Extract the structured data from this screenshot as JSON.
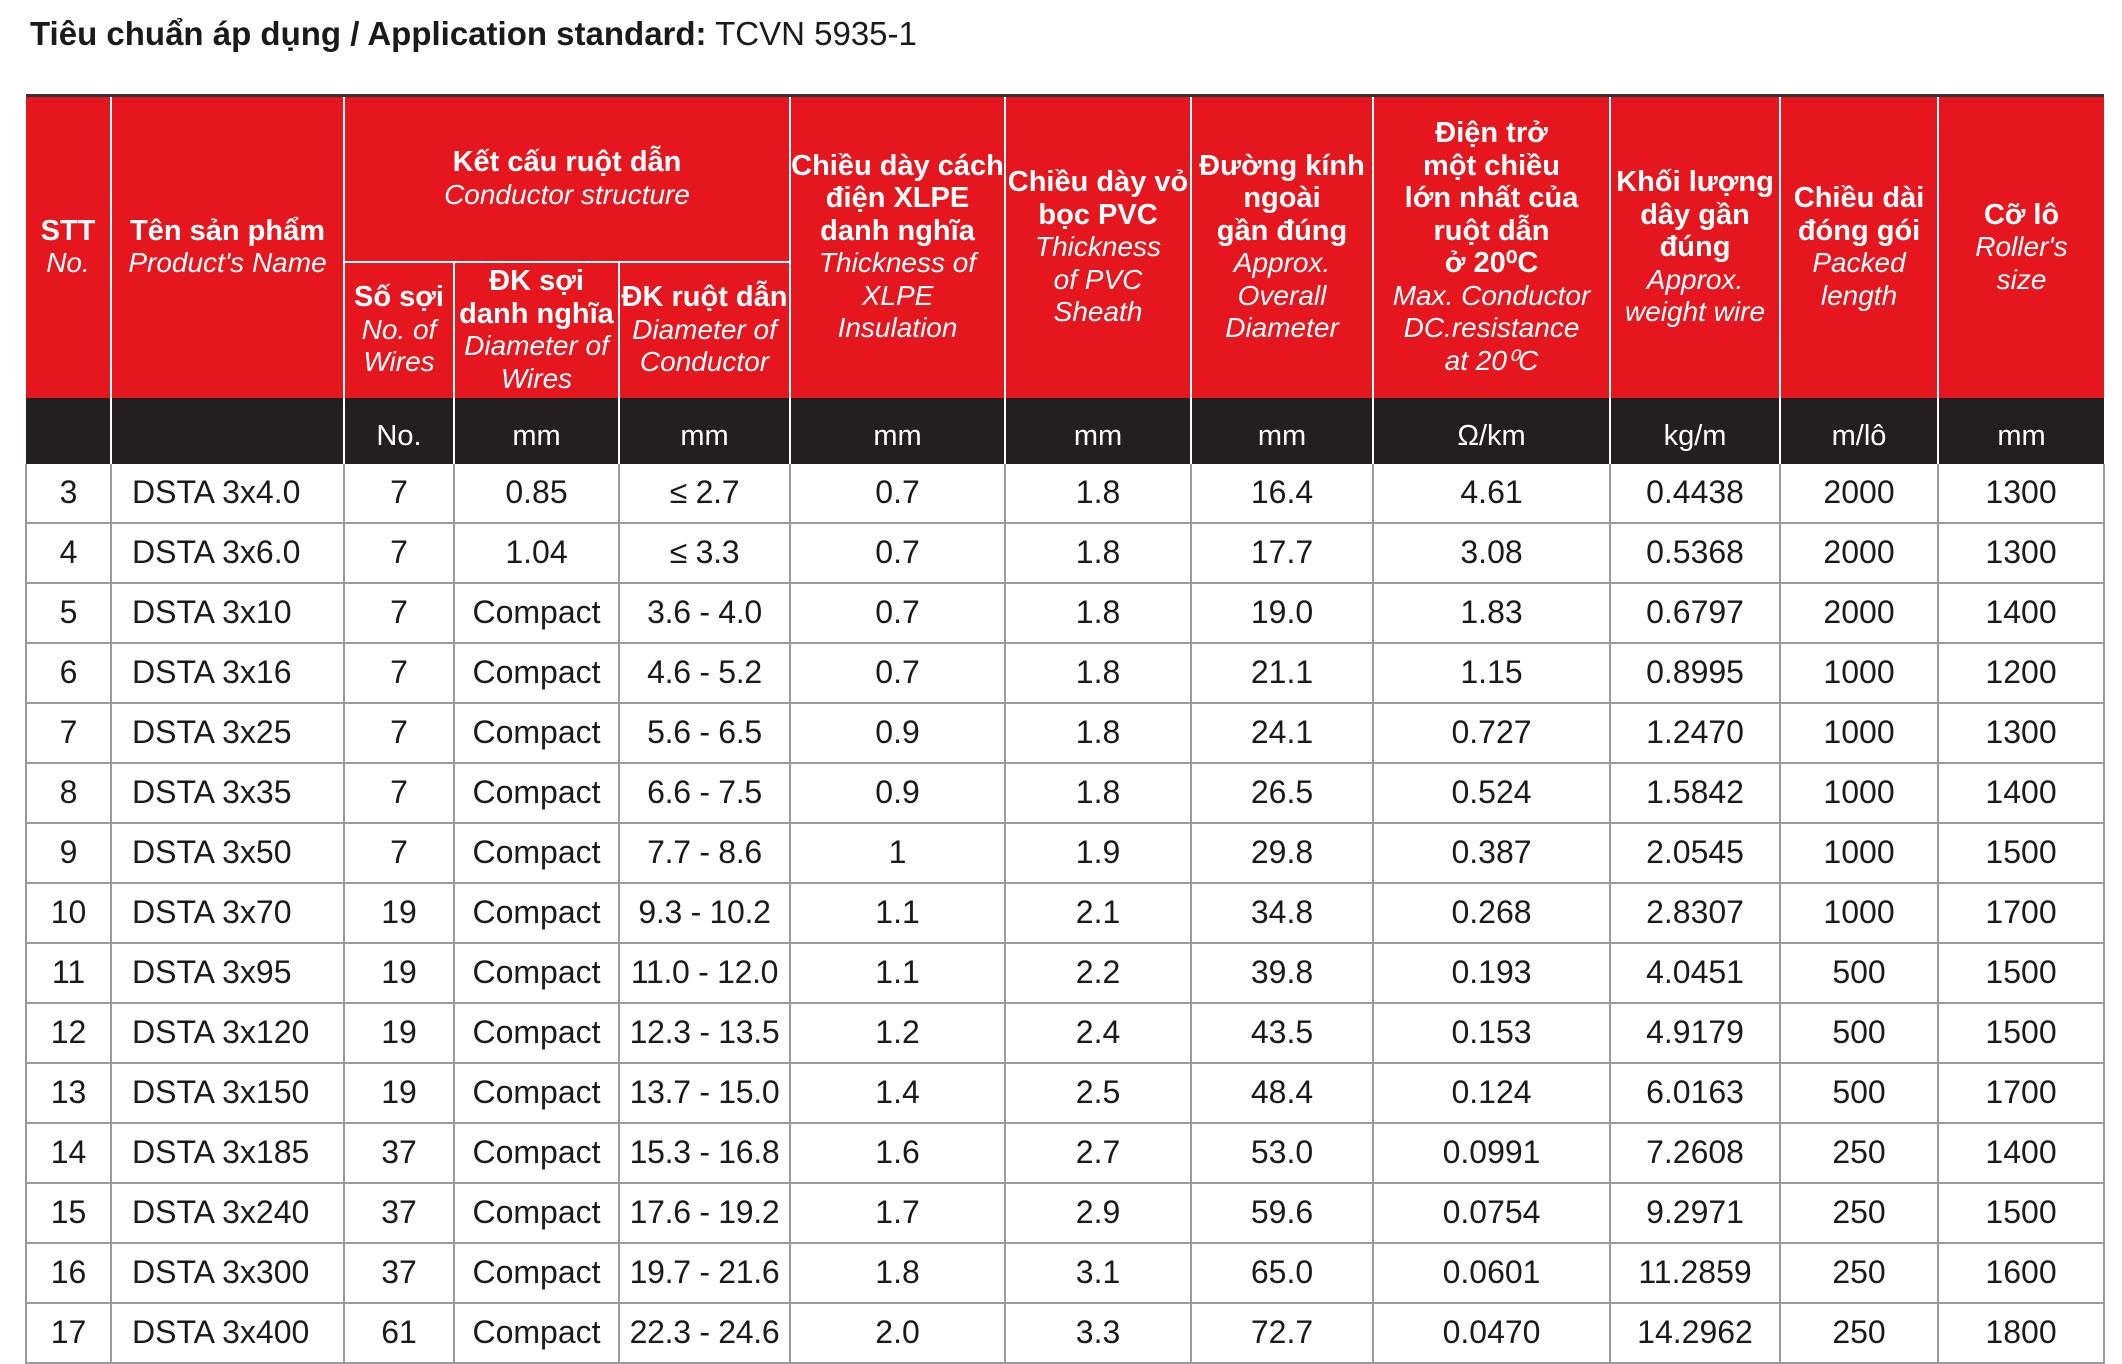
{
  "title": {
    "label": "Tiêu chuẩn áp dụng / Application standard:",
    "value": "TCVN 5935-1"
  },
  "headers": {
    "stt": {
      "vi": "STT",
      "en": "No."
    },
    "name": {
      "vi": "Tên sản phẩm",
      "en": "Product's Name"
    },
    "conductor": {
      "vi": "Kết cấu ruột dẫn",
      "en": "Conductor structure"
    },
    "wires": {
      "vi": "Số sợi",
      "en1": "No. of",
      "en2": "Wires"
    },
    "wire_dia": {
      "vi1": "ĐK sợi",
      "vi2": "danh nghĩa",
      "en1": "Diameter of",
      "en2": "Wires"
    },
    "cond_dia": {
      "vi": "ĐK ruột dẫn",
      "en1": "Diameter of",
      "en2": "Conductor"
    },
    "insulation": {
      "vi1": "Chiều dày cách",
      "vi2": "điện XLPE",
      "vi3": "danh nghĩa",
      "en1": "Thickness of",
      "en2": "XLPE",
      "en3": "Insulation"
    },
    "sheath": {
      "vi1": "Chiều dày vỏ",
      "vi2": "bọc PVC",
      "en1": "Thickness",
      "en2": "of PVC",
      "en3": "Sheath"
    },
    "overall": {
      "vi1": "Đường kính",
      "vi2": "ngoài",
      "vi3": "gần đúng",
      "en1": "Approx.",
      "en2": "Overall",
      "en3": "Diameter"
    },
    "resistance": {
      "vi1": "Điện trở",
      "vi2": "một chiều",
      "vi3": "lớn nhất của",
      "vi4": "ruột dẫn",
      "vi5": "ở 20⁰C",
      "en1": "Max. Conductor",
      "en2": "DC.resistance",
      "en3": "at 20⁰C"
    },
    "weight": {
      "vi1": "Khối lượng",
      "vi2": "dây gần",
      "vi3": "đúng",
      "en1": "Approx.",
      "en2": "weight wire"
    },
    "length": {
      "vi1": "Chiều dài",
      "vi2": "đóng gói",
      "en1": "Packed",
      "en2": "length"
    },
    "roller": {
      "vi": "Cỡ lô",
      "en1": "Roller's",
      "en2": "size"
    }
  },
  "units": [
    "",
    "",
    "No.",
    "mm",
    "mm",
    "mm",
    "mm",
    "mm",
    "Ω/km",
    "kg/m",
    "m/lô",
    "mm"
  ],
  "rows": [
    [
      "3",
      "DSTA 3x4.0",
      "7",
      "0.85",
      "≤ 2.7",
      "0.7",
      "1.8",
      "16.4",
      "4.61",
      "0.4438",
      "2000",
      "1300"
    ],
    [
      "4",
      "DSTA 3x6.0",
      "7",
      "1.04",
      "≤ 3.3",
      "0.7",
      "1.8",
      "17.7",
      "3.08",
      "0.5368",
      "2000",
      "1300"
    ],
    [
      "5",
      "DSTA 3x10",
      "7",
      "Compact",
      "3.6 - 4.0",
      "0.7",
      "1.8",
      "19.0",
      "1.83",
      "0.6797",
      "2000",
      "1400"
    ],
    [
      "6",
      "DSTA 3x16",
      "7",
      "Compact",
      "4.6 - 5.2",
      "0.7",
      "1.8",
      "21.1",
      "1.15",
      "0.8995",
      "1000",
      "1200"
    ],
    [
      "7",
      "DSTA 3x25",
      "7",
      "Compact",
      "5.6 - 6.5",
      "0.9",
      "1.8",
      "24.1",
      "0.727",
      "1.2470",
      "1000",
      "1300"
    ],
    [
      "8",
      "DSTA 3x35",
      "7",
      "Compact",
      "6.6 - 7.5",
      "0.9",
      "1.8",
      "26.5",
      "0.524",
      "1.5842",
      "1000",
      "1400"
    ],
    [
      "9",
      "DSTA 3x50",
      "7",
      "Compact",
      "7.7 - 8.6",
      "1",
      "1.9",
      "29.8",
      "0.387",
      "2.0545",
      "1000",
      "1500"
    ],
    [
      "10",
      "DSTA 3x70",
      "19",
      "Compact",
      "9.3 - 10.2",
      "1.1",
      "2.1",
      "34.8",
      "0.268",
      "2.8307",
      "1000",
      "1700"
    ],
    [
      "11",
      "DSTA 3x95",
      "19",
      "Compact",
      "11.0 - 12.0",
      "1.1",
      "2.2",
      "39.8",
      "0.193",
      "4.0451",
      "500",
      "1500"
    ],
    [
      "12",
      "DSTA 3x120",
      "19",
      "Compact",
      "12.3 - 13.5",
      "1.2",
      "2.4",
      "43.5",
      "0.153",
      "4.9179",
      "500",
      "1500"
    ],
    [
      "13",
      "DSTA 3x150",
      "19",
      "Compact",
      "13.7 - 15.0",
      "1.4",
      "2.5",
      "48.4",
      "0.124",
      "6.0163",
      "500",
      "1700"
    ],
    [
      "14",
      "DSTA 3x185",
      "37",
      "Compact",
      "15.3 - 16.8",
      "1.6",
      "2.7",
      "53.0",
      "0.0991",
      "7.2608",
      "250",
      "1400"
    ],
    [
      "15",
      "DSTA 3x240",
      "37",
      "Compact",
      "17.6 - 19.2",
      "1.7",
      "2.9",
      "59.6",
      "0.0754",
      "9.2971",
      "250",
      "1500"
    ],
    [
      "16",
      "DSTA 3x300",
      "37",
      "Compact",
      "19.7 - 21.6",
      "1.8",
      "3.1",
      "65.0",
      "0.0601",
      "11.2859",
      "250",
      "1600"
    ],
    [
      "17",
      "DSTA 3x400",
      "61",
      "Compact",
      "22.3 - 24.6",
      "2.0",
      "3.3",
      "72.7",
      "0.0470",
      "14.2962",
      "250",
      "1800"
    ]
  ],
  "colors": {
    "header_red": "#e6161f",
    "unit_bar": "#231f20",
    "grid": "#9a9a9a"
  }
}
